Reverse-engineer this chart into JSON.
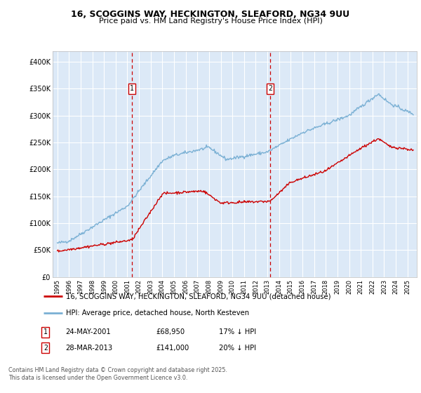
{
  "title_line1": "16, SCOGGINS WAY, HECKINGTON, SLEAFORD, NG34 9UU",
  "title_line2": "Price paid vs. HM Land Registry's House Price Index (HPI)",
  "background_color": "#ffffff",
  "plot_bg_color": "#dce9f7",
  "ylim": [
    0,
    420000
  ],
  "yticks": [
    0,
    50000,
    100000,
    150000,
    200000,
    250000,
    300000,
    350000,
    400000
  ],
  "legend_entries": [
    "16, SCOGGINS WAY, HECKINGTON, SLEAFORD, NG34 9UU (detached house)",
    "HPI: Average price, detached house, North Kesteven"
  ],
  "legend_colors": [
    "#cc0000",
    "#7ab0d4"
  ],
  "annotation1": {
    "label": "1",
    "date_str": "24-MAY-2001",
    "price": "£68,950",
    "hpi": "17% ↓ HPI",
    "x_year": 2001.4
  },
  "annotation2": {
    "label": "2",
    "date_str": "28-MAR-2013",
    "price": "£141,000",
    "hpi": "20% ↓ HPI",
    "x_year": 2013.23
  },
  "footer_line1": "Contains HM Land Registry data © Crown copyright and database right 2025.",
  "footer_line2": "This data is licensed under the Open Government Licence v3.0.",
  "hpi_line_color": "#7ab0d4",
  "price_line_color": "#cc0000",
  "grid_color": "#ffffff",
  "vline_color": "#cc0000",
  "marker_box_color": "#cc0000",
  "xlim_left": 1994.6,
  "xlim_right": 2025.8
}
